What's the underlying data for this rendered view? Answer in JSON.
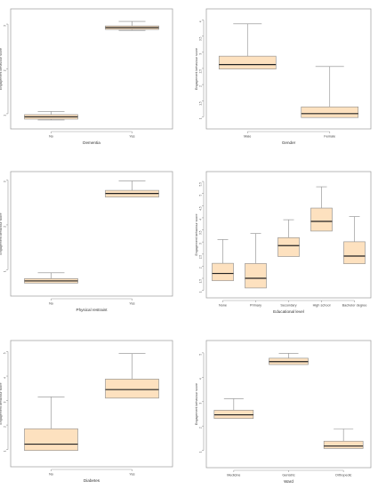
{
  "chart_data": [
    {
      "type": "boxplot",
      "ylabel": "Engagement behaviour score",
      "xlabel": "Dementia",
      "categories": [
        "No",
        "Yes"
      ],
      "yticks": [
        "1",
        "2",
        "3"
      ],
      "ylim": [
        0.8,
        3.2
      ],
      "boxes": [
        {
          "whislo": 0.86,
          "q1": 0.88,
          "med": 0.93,
          "q3": 0.98,
          "whishi": 1.05
        },
        {
          "whislo": 2.86,
          "q1": 2.88,
          "med": 2.92,
          "q3": 2.96,
          "whishi": 3.06
        }
      ]
    },
    {
      "type": "boxplot",
      "ylabel": "Engagement behaviour score",
      "xlabel": "Gender",
      "categories": [
        "Male",
        "Female"
      ],
      "yticks": [
        "1",
        "1.5",
        "2",
        "2.5",
        "3",
        "3.5",
        "4"
      ],
      "ylim": [
        0.82,
        4.15
      ],
      "boxes": [
        {
          "whislo": 2.48,
          "q1": 2.48,
          "med": 2.62,
          "q3": 2.88,
          "whishi": 3.88
        },
        {
          "whislo": 0.98,
          "q1": 0.98,
          "med": 1.1,
          "q3": 1.31,
          "whishi": 2.56
        }
      ]
    },
    {
      "type": "boxplot",
      "ylabel": "Engagement behaviour score",
      "xlabel": "Physical restraint",
      "categories": [
        "No",
        "Yes"
      ],
      "yticks": [
        "1",
        "2",
        "3"
      ],
      "ylim": [
        0.55,
        3.05
      ],
      "boxes": [
        {
          "whislo": 0.7,
          "q1": 0.7,
          "med": 0.75,
          "q3": 0.8,
          "whishi": 0.93
        },
        {
          "whislo": 2.62,
          "q1": 2.62,
          "med": 2.7,
          "q3": 2.77,
          "whishi": 2.98
        }
      ]
    },
    {
      "type": "boxplot",
      "ylabel": "Engagement behaviour score",
      "xlabel": "Educational level",
      "categories": [
        "None",
        "Primary",
        "Secondary",
        "High school",
        "Bachelor degree"
      ],
      "yticks": [
        "1",
        "1.5",
        "2",
        "2.5",
        "3",
        "3.5",
        "4",
        "4.5",
        "5",
        "5.5"
      ],
      "ylim": [
        0.95,
        5.65
      ],
      "boxes": [
        {
          "whislo": 1.4,
          "q1": 1.4,
          "med": 1.7,
          "q3": 2.12,
          "whishi": 3.1
        },
        {
          "whislo": 1.1,
          "q1": 1.1,
          "med": 1.5,
          "q3": 2.11,
          "whishi": 3.35
        },
        {
          "whislo": 2.4,
          "q1": 2.4,
          "med": 2.85,
          "q3": 3.18,
          "whishi": 3.92
        },
        {
          "whislo": 3.45,
          "q1": 3.45,
          "med": 3.85,
          "q3": 4.4,
          "whishi": 5.28
        },
        {
          "whislo": 2.1,
          "q1": 2.1,
          "med": 2.42,
          "q3": 3.01,
          "whishi": 4.05
        }
      ]
    },
    {
      "type": "boxplot",
      "ylabel": "Engagement behaviour score",
      "xlabel": "Diabetes",
      "categories": [
        "No",
        "Yes"
      ],
      "yticks": [
        "1",
        "2",
        "3",
        "4",
        "5"
      ],
      "ylim": [
        0.55,
        5.2
      ],
      "boxes": [
        {
          "whislo": 0.96,
          "q1": 0.96,
          "med": 1.22,
          "q3": 1.85,
          "whishi": 3.15
        },
        {
          "whislo": 3.1,
          "q1": 3.1,
          "med": 3.45,
          "q3": 3.88,
          "whishi": 4.92
        }
      ]
    },
    {
      "type": "boxplot",
      "ylabel": "Engagement behaviour score",
      "xlabel": "Ward",
      "categories": [
        "Medicine",
        "Geriatric",
        "Orthopedic"
      ],
      "yticks": [
        "1",
        "2",
        "3",
        "4",
        "5"
      ],
      "ylim": [
        0.55,
        5.25
      ],
      "boxes": [
        {
          "whislo": 2.31,
          "q1": 2.31,
          "med": 2.46,
          "q3": 2.65,
          "whishi": 3.12
        },
        {
          "whislo": 4.52,
          "q1": 4.52,
          "med": 4.64,
          "q3": 4.78,
          "whishi": 4.98
        },
        {
          "whislo": 1.08,
          "q1": 1.08,
          "med": 1.18,
          "q3": 1.38,
          "whishi": 1.88
        }
      ]
    }
  ]
}
